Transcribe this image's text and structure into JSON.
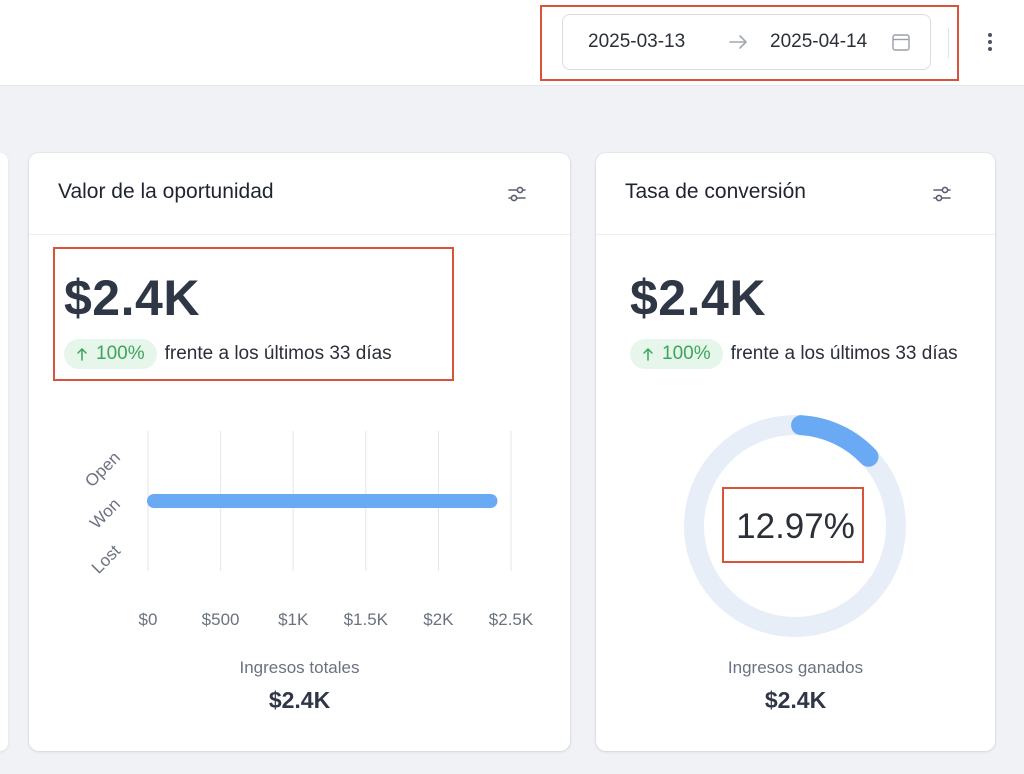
{
  "header": {
    "date_start": "2025-03-13",
    "date_end": "2025-04-14",
    "icons": [
      "arrow-right-icon",
      "calendar-icon",
      "more-vertical-icon"
    ]
  },
  "cards": [
    {
      "title": "Valor de la oportunidad",
      "value": "$2.4K",
      "delta": "100%",
      "delta_text": "frente a los últimos 33 días",
      "footer_label": "Ingresos totales",
      "footer_value": "$2.4K",
      "chart_data": {
        "type": "bar",
        "orientation": "horizontal",
        "categories": [
          "Open",
          "Won",
          "Lost"
        ],
        "values": [
          0,
          2400,
          0
        ],
        "xlim": [
          0,
          2500
        ],
        "xticks": [
          "$0",
          "$500",
          "$1K",
          "$1.5K",
          "$2K",
          "$2.5K"
        ],
        "xtick_values": [
          0,
          500,
          1000,
          1500,
          2000,
          2500
        ],
        "grid": "vertical",
        "bar_color": "#6aaaf5"
      }
    },
    {
      "title": "Tasa de conversión",
      "value": "$2.4K",
      "delta": "100%",
      "delta_text": "frente a los últimos 33 días",
      "gauge_value": "12.97%",
      "gauge_fraction": 0.1297,
      "footer_label": "Ingresos ganados",
      "footer_value": "$2.4K"
    }
  ],
  "colors": {
    "accent_blue": "#6aaaf5",
    "positive_green": "#3ca55c",
    "positive_bg": "#e7f6ea",
    "highlight_red": "#d9533b",
    "track": "#e8eef8"
  }
}
